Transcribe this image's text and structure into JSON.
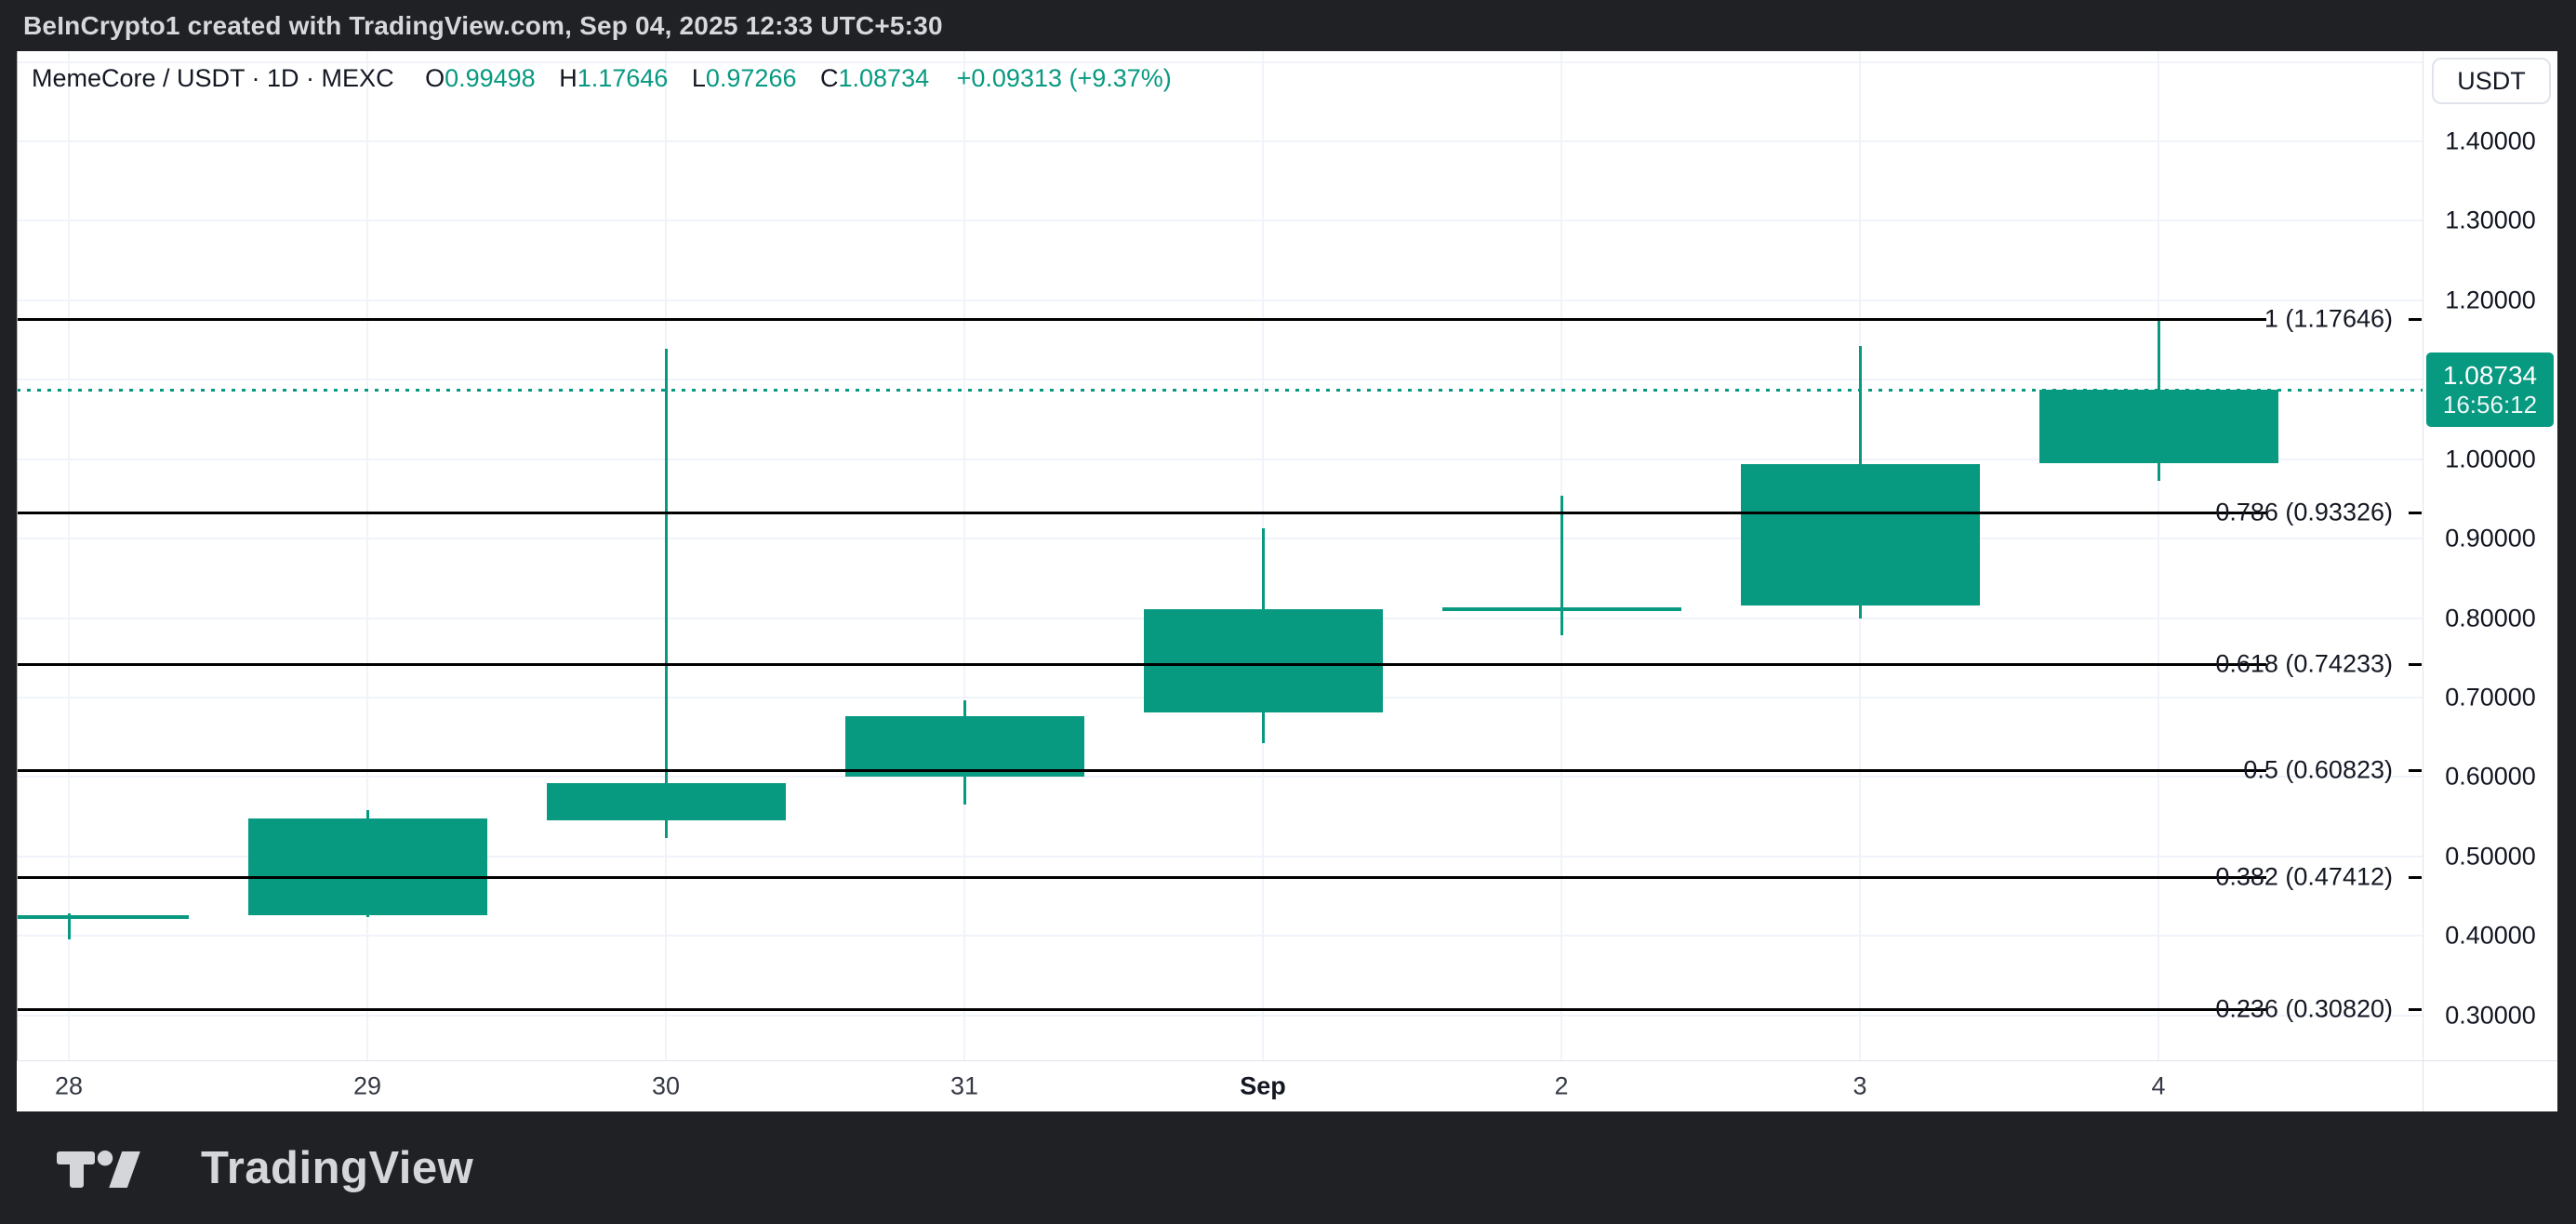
{
  "header": {
    "title": "BeInCrypto1 created with TradingView.com, Sep 04, 2025 12:33 UTC+5:30"
  },
  "toolbar": {
    "currency_label": "USDT"
  },
  "legend": {
    "symbol_line": "MemeCore / USDT · 1D · MEXC",
    "o_label": "O",
    "o_value": "0.99498",
    "h_label": "H",
    "h_value": "1.17646",
    "l_label": "L",
    "l_value": "0.97266",
    "c_label": "C",
    "c_value": "1.08734",
    "change": "+0.09313 (+9.37%)"
  },
  "price_badge": {
    "price": "1.08734",
    "countdown": "16:56:12"
  },
  "footer": {
    "brand": "TradingView"
  },
  "colors": {
    "up": "#089981",
    "fib_line": "#000000",
    "grid": "#f0f3fa",
    "text_dark": "#131722",
    "page_bg": "#1f2124",
    "badge_bg": "#089981"
  },
  "chart_data": {
    "type": "candlestick",
    "title": "MemeCore / USDT · 1D · MEXC",
    "exchange": "MEXC",
    "interval": "1D",
    "legend_position": "top-left",
    "grid": true,
    "x_labels": [
      "28",
      "29",
      "30",
      "31",
      "Sep",
      "2",
      "3",
      "4"
    ],
    "emphasized_x_label": "Sep",
    "candles": [
      {
        "x": "28",
        "o": 0.423,
        "h": 0.429,
        "l": 0.396,
        "c": 0.426
      },
      {
        "x": "29",
        "o": 0.426,
        "h": 0.558,
        "l": 0.424,
        "c": 0.548
      },
      {
        "x": "30",
        "o": 0.546,
        "h": 1.139,
        "l": 0.523,
        "c": 0.592
      },
      {
        "x": "31",
        "o": 0.6,
        "h": 0.697,
        "l": 0.565,
        "c": 0.677
      },
      {
        "x": "Sep",
        "o": 0.681,
        "h": 0.913,
        "l": 0.643,
        "c": 0.811
      },
      {
        "x": "2",
        "o": 0.812,
        "h": 0.954,
        "l": 0.778,
        "c": 0.814
      },
      {
        "x": "3",
        "o": 0.816,
        "h": 1.143,
        "l": 0.799,
        "c": 0.994
      },
      {
        "x": "4",
        "o": 0.99498,
        "h": 1.17646,
        "l": 0.97266,
        "c": 1.08734
      }
    ],
    "y_ticks": [
      1.4,
      1.3,
      1.2,
      1.1,
      1.0,
      0.9,
      0.8,
      0.7,
      0.6,
      0.5,
      0.4,
      0.3
    ],
    "grid_prices": [
      1.5,
      1.4,
      1.3,
      1.2,
      1.1,
      1.0,
      0.9,
      0.8,
      0.7,
      0.6,
      0.5,
      0.4,
      0.3
    ],
    "ylim": [
      0.2436,
      1.5135
    ],
    "current_price": 1.08734,
    "fib_levels": [
      {
        "label": "1 (1.17646)",
        "price": 1.17646
      },
      {
        "label": "0.786 (0.93326)",
        "price": 0.93326
      },
      {
        "label": "0.618 (0.74233)",
        "price": 0.74233
      },
      {
        "label": "0.5 (0.60823)",
        "price": 0.60823
      },
      {
        "label": "0.382 (0.47412)",
        "price": 0.47412
      },
      {
        "label": "0.236 (0.30820)",
        "price": 0.3082
      }
    ]
  }
}
